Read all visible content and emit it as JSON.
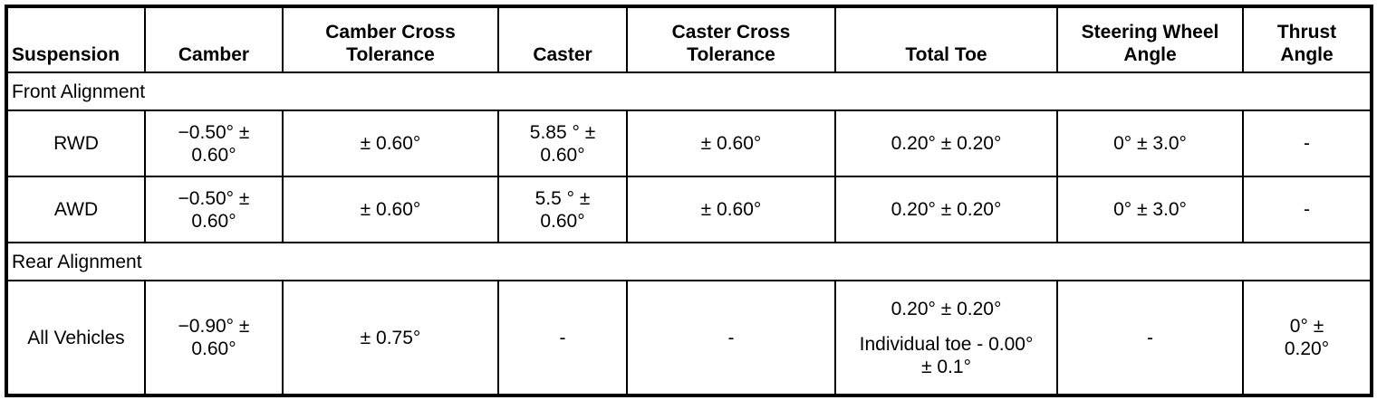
{
  "headers": [
    [
      "Suspension"
    ],
    [
      "Camber"
    ],
    [
      "Camber Cross",
      "Tolerance"
    ],
    [
      "Caster"
    ],
    [
      "Caster Cross",
      "Tolerance"
    ],
    [
      "Total Toe"
    ],
    [
      "Steering Wheel",
      "Angle"
    ],
    [
      "Thrust",
      "Angle"
    ]
  ],
  "sections": [
    {
      "title": "Front Alignment",
      "rows": [
        {
          "cells": [
            [
              "RWD"
            ],
            [
              "−0.50° ±",
              "0.60°"
            ],
            [
              "± 0.60°"
            ],
            [
              "5.85 ° ±",
              "0.60°"
            ],
            [
              "± 0.60°"
            ],
            [
              "0.20° ± 0.20°"
            ],
            [
              "0° ± 3.0°"
            ],
            [
              "-"
            ]
          ]
        },
        {
          "cells": [
            [
              "AWD"
            ],
            [
              "−0.50° ±",
              "0.60°"
            ],
            [
              "± 0.60°"
            ],
            [
              "5.5 ° ±",
              "0.60°"
            ],
            [
              "± 0.60°"
            ],
            [
              "0.20° ± 0.20°"
            ],
            [
              "0° ± 3.0°"
            ],
            [
              "-"
            ]
          ]
        }
      ]
    },
    {
      "title": "Rear Alignment",
      "rows": [
        {
          "cells": [
            [
              "All Vehicles"
            ],
            [
              "−0.90° ±",
              "0.60°"
            ],
            [
              "± 0.75°"
            ],
            [
              "-"
            ],
            [
              "-"
            ],
            [
              "0.20° ± 0.20°",
              "",
              "Individual toe - 0.00°",
              "± 0.1°"
            ],
            [
              "-"
            ],
            [
              "0° ±",
              "0.20°"
            ]
          ]
        }
      ]
    }
  ]
}
